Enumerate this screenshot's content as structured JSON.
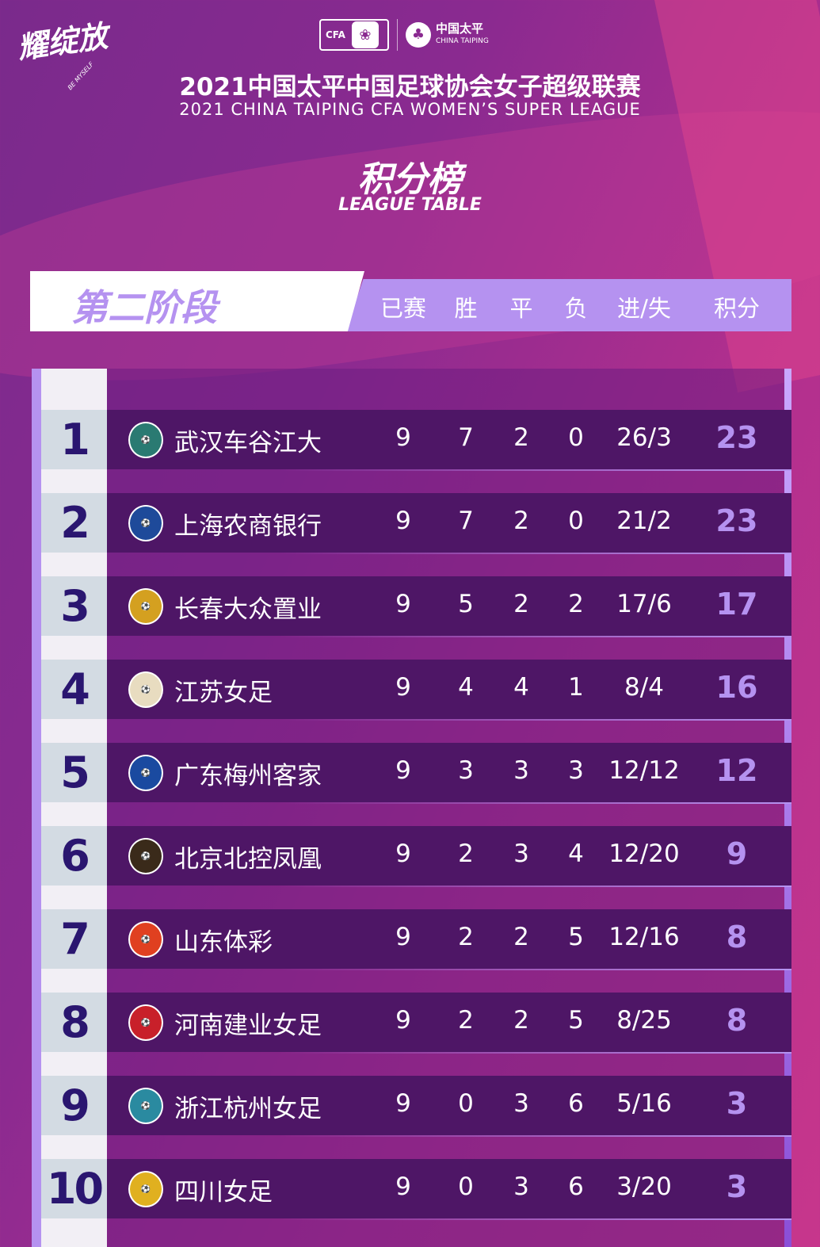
{
  "header": {
    "logo_text": "耀绽放",
    "logo_sub": "BE MYSELF",
    "sponsor_cfa": "CFA",
    "sponsor_ct_cn": "中国太平",
    "sponsor_ct_en": "CHINA TAIPING",
    "title_cn": "2021中国太平中国足球协会女子超级联赛",
    "title_en": "2021 CHINA TAIPING CFA WOMEN’S SUPER LEAGUE",
    "subtitle_cn": "积分榜",
    "subtitle_en": "LEAGUE TABLE"
  },
  "table": {
    "stage": "第二阶段",
    "columns": [
      "已赛",
      "胜",
      "平",
      "负",
      "进/失",
      "积分"
    ],
    "accent": "#b592f0",
    "rows": [
      {
        "rank": "1",
        "team": "武汉车谷江大",
        "icon": "wuhan-crest-icon",
        "color": "#2a7a72",
        "played": "9",
        "won": "7",
        "drawn": "2",
        "lost": "0",
        "goals": "26/3",
        "points": "23"
      },
      {
        "rank": "2",
        "team": "上海农商银行",
        "icon": "shanghai-crest-icon",
        "color": "#1e4a9a",
        "played": "9",
        "won": "7",
        "drawn": "2",
        "lost": "0",
        "goals": "21/2",
        "points": "23"
      },
      {
        "rank": "3",
        "team": "长春大众置业",
        "icon": "changchun-crest-icon",
        "color": "#d4a020",
        "played": "9",
        "won": "5",
        "drawn": "2",
        "lost": "2",
        "goals": "17/6",
        "points": "17"
      },
      {
        "rank": "4",
        "team": "江苏女足",
        "icon": "jiangsu-crest-icon",
        "color": "#e8dcc0",
        "played": "9",
        "won": "4",
        "drawn": "4",
        "lost": "1",
        "goals": "8/4",
        "points": "16"
      },
      {
        "rank": "5",
        "team": "广东梅州客家",
        "icon": "guangdong-crest-icon",
        "color": "#1a4aa0",
        "played": "9",
        "won": "3",
        "drawn": "3",
        "lost": "3",
        "goals": "12/12",
        "points": "12"
      },
      {
        "rank": "6",
        "team": "北京北控凤凰",
        "icon": "beijing-crest-icon",
        "color": "#3a2a1a",
        "played": "9",
        "won": "2",
        "drawn": "3",
        "lost": "4",
        "goals": "12/20",
        "points": "9"
      },
      {
        "rank": "7",
        "team": "山东体彩",
        "icon": "shandong-crest-icon",
        "color": "#e04020",
        "played": "9",
        "won": "2",
        "drawn": "2",
        "lost": "5",
        "goals": "12/16",
        "points": "8"
      },
      {
        "rank": "8",
        "team": "河南建业女足",
        "icon": "henan-crest-icon",
        "color": "#c8202a",
        "played": "9",
        "won": "2",
        "drawn": "2",
        "lost": "5",
        "goals": "8/25",
        "points": "8"
      },
      {
        "rank": "9",
        "team": "浙江杭州女足",
        "icon": "zhejiang-crest-icon",
        "color": "#2a8aa0",
        "played": "9",
        "won": "0",
        "drawn": "3",
        "lost": "6",
        "goals": "5/16",
        "points": "3"
      },
      {
        "rank": "10",
        "team": "四川女足",
        "icon": "sichuan-crest-icon",
        "color": "#e0b020",
        "played": "9",
        "won": "0",
        "drawn": "3",
        "lost": "6",
        "goals": "3/20",
        "points": "3"
      }
    ]
  }
}
